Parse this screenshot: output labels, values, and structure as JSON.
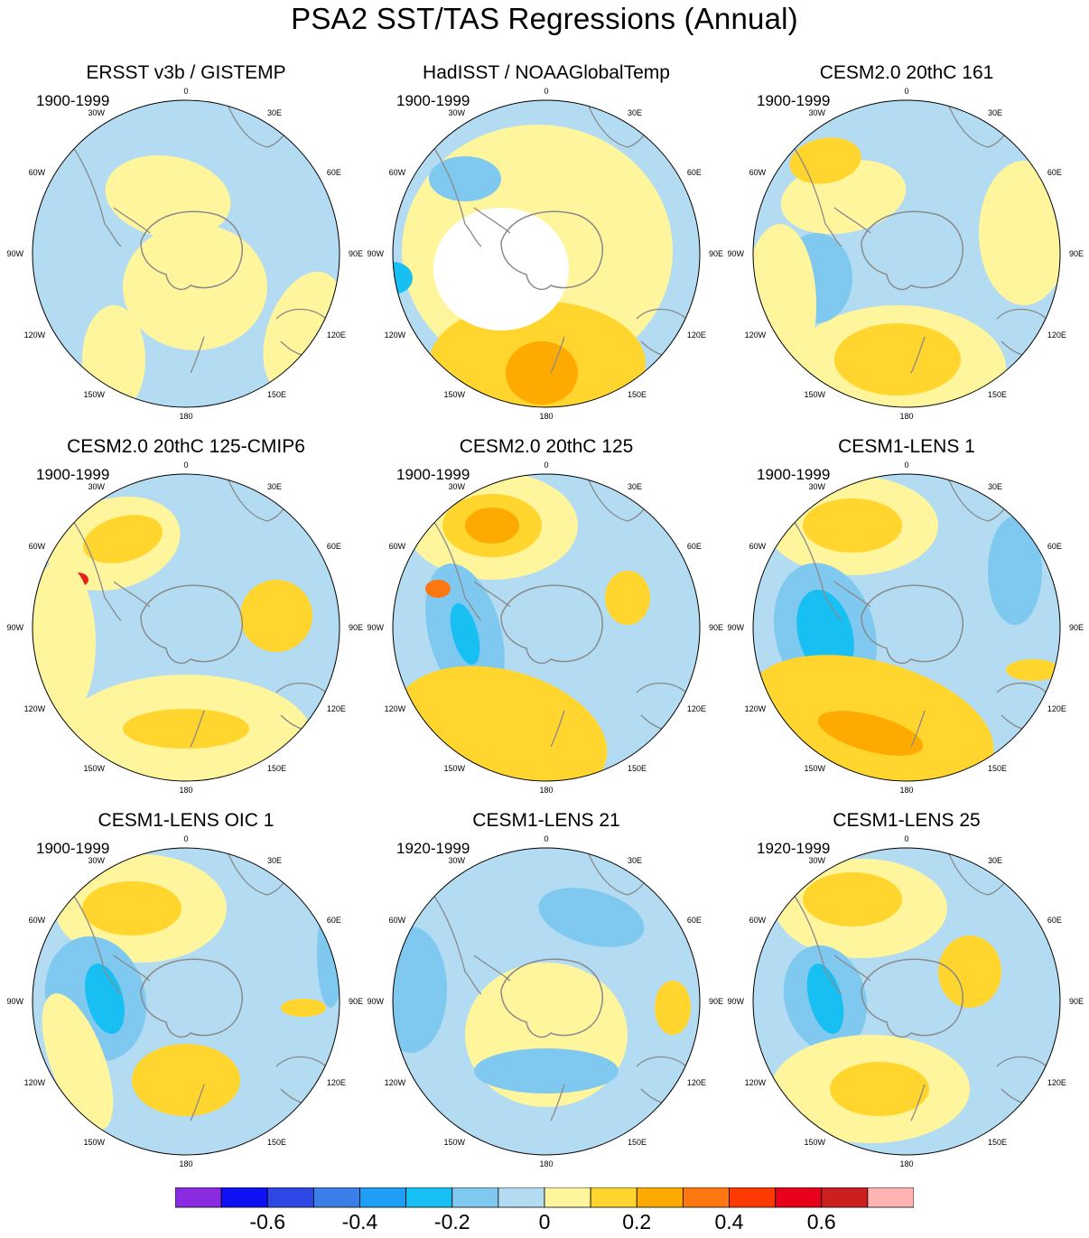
{
  "title": "PSA2 SST/TAS Regressions (Annual)",
  "palette": {
    "ocean_neutral": "#b3dcf2",
    "land_white": "#ffffff",
    "coast_gray": "#8a8a8a",
    "outline": "#000000"
  },
  "longitude_labels": [
    "0",
    "30E",
    "60E",
    "90E",
    "120E",
    "150E",
    "180",
    "150W",
    "120W",
    "90W",
    "60W",
    "30W"
  ],
  "panels": [
    {
      "title": "ERSST v3b / GISTEMP",
      "period": "1900-1999",
      "blobs": [
        [
          180,
          150,
          70,
          45,
          10,
          "#fff59d"
        ],
        [
          120,
          330,
          35,
          60,
          0,
          "#fff59d"
        ],
        [
          330,
          300,
          40,
          70,
          20,
          "#fff59d"
        ],
        [
          210,
          250,
          80,
          70,
          0,
          "#fff59d"
        ]
      ]
    },
    {
      "title": "HadISST / NOAAGlobalTemp",
      "period": "1900-1999",
      "blobs": [
        [
          190,
          210,
          150,
          140,
          0,
          "#fff59d"
        ],
        [
          190,
          335,
          120,
          70,
          0,
          "#ffd52e"
        ],
        [
          195,
          345,
          40,
          35,
          0,
          "#ffaa00"
        ],
        [
          30,
          240,
          22,
          18,
          0,
          "#18bff2"
        ],
        [
          150,
          230,
          75,
          68,
          0,
          "#ffffff"
        ],
        [
          110,
          130,
          40,
          25,
          0,
          "#7fc8f0"
        ]
      ]
    },
    {
      "title": "CESM2.0 20thC 161",
      "period": "1900-1999",
      "blobs": [
        [
          130,
          150,
          70,
          40,
          -10,
          "#fff59d"
        ],
        [
          110,
          110,
          40,
          25,
          -10,
          "#ffd52e"
        ],
        [
          190,
          340,
          120,
          70,
          0,
          "#fff59d"
        ],
        [
          190,
          330,
          70,
          40,
          0,
          "#ffd52e"
        ],
        [
          330,
          190,
          50,
          80,
          0,
          "#fff59d"
        ],
        [
          100,
          240,
          40,
          50,
          0,
          "#7fc8f0"
        ],
        [
          60,
          270,
          40,
          90,
          0,
          "#fff59d"
        ]
      ]
    },
    {
      "title": "CESM2.0 20thC 125-CMIP6",
      "period": "1900-1999",
      "blobs": [
        [
          120,
          120,
          75,
          50,
          -15,
          "#fff59d"
        ],
        [
          130,
          115,
          45,
          25,
          -15,
          "#ffd52e"
        ],
        [
          80,
          160,
          12,
          8,
          0,
          "#e8201a"
        ],
        [
          300,
          200,
          40,
          40,
          0,
          "#ffd52e"
        ],
        [
          200,
          335,
          140,
          70,
          0,
          "#fff59d"
        ],
        [
          200,
          325,
          70,
          22,
          0,
          "#ffd52e"
        ],
        [
          60,
          230,
          40,
          90,
          0,
          "#fff59d"
        ]
      ]
    },
    {
      "title": "CESM2.0 20thC 125",
      "period": "1900-1999",
      "blobs": [
        [
          140,
          100,
          95,
          60,
          0,
          "#fff59d"
        ],
        [
          140,
          100,
          55,
          35,
          0,
          "#ffd52e"
        ],
        [
          140,
          100,
          30,
          20,
          0,
          "#ffaa00"
        ],
        [
          110,
          220,
          40,
          80,
          -15,
          "#7fc8f0"
        ],
        [
          110,
          220,
          14,
          35,
          -15,
          "#18bff2"
        ],
        [
          150,
          330,
          120,
          70,
          15,
          "#ffd52e"
        ],
        [
          290,
          180,
          25,
          30,
          0,
          "#ffd52e"
        ],
        [
          80,
          170,
          14,
          10,
          0,
          "#ff7710"
        ]
      ]
    },
    {
      "title": "CESM1-LENS 1",
      "period": "1900-1999",
      "blobs": [
        [
          140,
          100,
          95,
          55,
          0,
          "#fff59d"
        ],
        [
          140,
          100,
          55,
          30,
          0,
          "#ffd52e"
        ],
        [
          110,
          220,
          55,
          80,
          -15,
          "#7fc8f0"
        ],
        [
          110,
          220,
          30,
          50,
          -15,
          "#18bff2"
        ],
        [
          160,
          320,
          140,
          70,
          15,
          "#ffd52e"
        ],
        [
          160,
          330,
          60,
          20,
          15,
          "#ffaa00"
        ],
        [
          340,
          260,
          30,
          12,
          0,
          "#ffd52e"
        ],
        [
          320,
          150,
          30,
          60,
          0,
          "#7fc8f0"
        ]
      ]
    },
    {
      "title": "CESM1-LENS OIC 1",
      "period": "1900-1999",
      "blobs": [
        [
          150,
          110,
          95,
          60,
          0,
          "#fff59d"
        ],
        [
          140,
          110,
          55,
          30,
          0,
          "#ffd52e"
        ],
        [
          100,
          210,
          55,
          70,
          -15,
          "#7fc8f0"
        ],
        [
          110,
          210,
          20,
          40,
          -15,
          "#18bff2"
        ],
        [
          200,
          300,
          60,
          40,
          0,
          "#ffd52e"
        ],
        [
          80,
          280,
          30,
          80,
          -20,
          "#fff59d"
        ],
        [
          360,
          160,
          15,
          60,
          0,
          "#7fc8f0"
        ],
        [
          330,
          220,
          25,
          10,
          0,
          "#ffd52e"
        ]
      ]
    },
    {
      "title": "CESM1-LENS 21",
      "period": "1920-1999",
      "blobs": [
        [
          200,
          100,
          120,
          50,
          0,
          "#b3dcf2"
        ],
        [
          250,
          120,
          60,
          30,
          15,
          "#7fc8f0"
        ],
        [
          200,
          250,
          90,
          80,
          0,
          "#fff59d"
        ],
        [
          200,
          290,
          80,
          25,
          0,
          "#7fc8f0"
        ],
        [
          50,
          200,
          40,
          70,
          0,
          "#7fc8f0"
        ],
        [
          340,
          220,
          20,
          30,
          0,
          "#ffd52e"
        ]
      ]
    },
    {
      "title": "CESM1-LENS 25",
      "period": "1920-1999",
      "blobs": [
        [
          150,
          110,
          95,
          55,
          0,
          "#fff59d"
        ],
        [
          140,
          100,
          55,
          30,
          0,
          "#ffd52e"
        ],
        [
          110,
          210,
          45,
          60,
          -15,
          "#7fc8f0"
        ],
        [
          110,
          210,
          18,
          40,
          -15,
          "#18bff2"
        ],
        [
          160,
          310,
          110,
          60,
          0,
          "#fff59d"
        ],
        [
          170,
          310,
          55,
          30,
          0,
          "#ffd52e"
        ],
        [
          270,
          180,
          35,
          40,
          0,
          "#ffd52e"
        ]
      ]
    }
  ],
  "colorbar": {
    "colors": [
      "#8a2be2",
      "#1010f5",
      "#2e48e6",
      "#3a7ee8",
      "#1f9ef5",
      "#18bff2",
      "#7fc8f0",
      "#b3dcf2",
      "#fff59d",
      "#ffd52e",
      "#ffaa00",
      "#ff7710",
      "#ff3a00",
      "#e8001a",
      "#cc1f1f",
      "#ffb3b3"
    ],
    "labels": [
      {
        "text": "-0.6",
        "value": -0.6
      },
      {
        "text": "-0.4",
        "value": -0.4
      },
      {
        "text": "-0.2",
        "value": -0.2
      },
      {
        "text": "0",
        "value": 0
      },
      {
        "text": "0.2",
        "value": 0.2
      },
      {
        "text": "0.4",
        "value": 0.4
      },
      {
        "text": "0.6",
        "value": 0.6
      }
    ]
  }
}
